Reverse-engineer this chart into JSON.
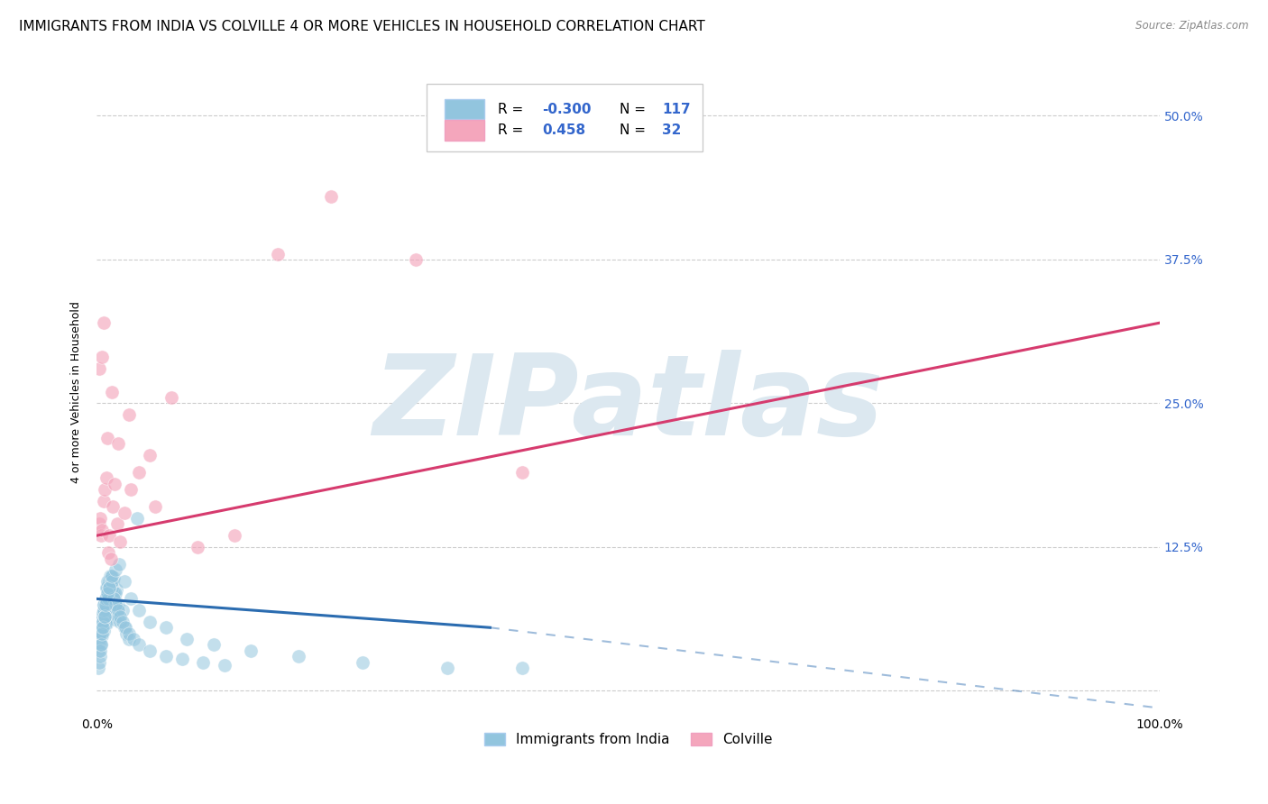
{
  "title": "IMMIGRANTS FROM INDIA VS COLVILLE 4 OR MORE VEHICLES IN HOUSEHOLD CORRELATION CHART",
  "source": "Source: ZipAtlas.com",
  "ylabel": "4 or more Vehicles in Household",
  "xlim": [
    0.0,
    100.0
  ],
  "ylim": [
    -2.0,
    54.0
  ],
  "yticks": [
    0.0,
    12.5,
    25.0,
    37.5,
    50.0
  ],
  "yticklabels": [
    "",
    "12.5%",
    "25.0%",
    "37.5%",
    "50.0%"
  ],
  "blue_color": "#92c5de",
  "pink_color": "#f4a6bc",
  "blue_R": -0.3,
  "blue_N": 117,
  "pink_R": 0.458,
  "pink_N": 32,
  "blue_line_color": "#2b6cb0",
  "pink_line_color": "#d63b6e",
  "grid_color": "#cccccc",
  "background_color": "#ffffff",
  "watermark": "ZIPatlas",
  "watermark_color": "#dce8f0",
  "title_fontsize": 11,
  "axis_fontsize": 9,
  "tick_fontsize": 10,
  "legend_color": "#3366cc",
  "blue_scatter_x": [
    0.22,
    0.35,
    0.41,
    0.52,
    0.58,
    0.63,
    0.68,
    0.72,
    0.75,
    0.8,
    0.85,
    0.9,
    0.95,
    1.0,
    1.05,
    1.1,
    1.15,
    1.2,
    1.25,
    1.3,
    1.35,
    1.4,
    1.48,
    1.55,
    1.62,
    1.7,
    1.78,
    1.85,
    1.92,
    2.0,
    0.2,
    0.3,
    0.38,
    0.45,
    0.5,
    0.55,
    0.6,
    0.65,
    0.7,
    0.78,
    0.82,
    0.88,
    0.93,
    0.98,
    1.03,
    1.08,
    1.18,
    1.28,
    1.38,
    1.5,
    1.6,
    1.72,
    1.88,
    2.05,
    2.2,
    2.4,
    2.6,
    2.8,
    3.0,
    0.18,
    0.25,
    0.32,
    0.42,
    0.48,
    0.54,
    0.62,
    0.7,
    0.78,
    0.85,
    0.92,
    1.0,
    1.1,
    1.2,
    1.32,
    1.45,
    1.6,
    1.8,
    2.0,
    2.2,
    2.45,
    2.7,
    3.0,
    3.5,
    4.0,
    5.0,
    6.5,
    8.0,
    10.0,
    12.0,
    0.15,
    0.22,
    0.28,
    0.35,
    0.42,
    0.5,
    0.6,
    0.72,
    0.85,
    1.0,
    1.2,
    1.45,
    1.75,
    2.1,
    2.6,
    3.2,
    4.0,
    5.0,
    6.5,
    8.5,
    11.0,
    14.5,
    19.0,
    25.0,
    33.0,
    40.0,
    3.8
  ],
  "blue_scatter_y": [
    5.5,
    6.0,
    5.8,
    6.2,
    6.5,
    5.9,
    6.8,
    7.0,
    6.4,
    6.9,
    7.2,
    5.8,
    6.3,
    7.5,
    7.8,
    6.5,
    7.0,
    8.0,
    7.3,
    6.8,
    7.6,
    8.2,
    6.5,
    7.1,
    8.5,
    6.2,
    7.8,
    8.8,
    7.2,
    7.5,
    4.2,
    5.0,
    5.5,
    4.8,
    5.6,
    6.0,
    6.8,
    7.5,
    5.2,
    6.5,
    5.8,
    7.0,
    8.0,
    7.8,
    9.0,
    8.5,
    9.5,
    10.0,
    9.0,
    9.5,
    9.8,
    8.5,
    7.5,
    6.5,
    6.0,
    7.0,
    5.5,
    5.0,
    4.5,
    3.5,
    4.5,
    5.0,
    4.0,
    5.5,
    6.0,
    7.0,
    7.5,
    6.5,
    8.0,
    9.0,
    9.5,
    8.0,
    9.0,
    10.0,
    9.5,
    8.0,
    7.5,
    7.0,
    6.5,
    6.0,
    5.5,
    5.0,
    4.5,
    4.0,
    3.5,
    3.0,
    2.8,
    2.5,
    2.2,
    2.0,
    2.5,
    3.0,
    3.5,
    4.0,
    5.0,
    5.5,
    6.5,
    7.5,
    8.5,
    9.0,
    10.0,
    10.5,
    11.0,
    9.5,
    8.0,
    7.0,
    6.0,
    5.5,
    4.5,
    4.0,
    3.5,
    3.0,
    2.5,
    2.0,
    2.0,
    15.0
  ],
  "pink_scatter_x": [
    0.2,
    0.3,
    0.4,
    0.52,
    0.65,
    0.78,
    0.92,
    1.05,
    1.18,
    1.35,
    1.5,
    1.7,
    1.9,
    2.2,
    2.6,
    3.2,
    4.0,
    5.5,
    7.0,
    9.5,
    13.0,
    17.0,
    22.0,
    30.0,
    40.0,
    0.25,
    0.45,
    0.7,
    1.0,
    1.4,
    2.0,
    3.0,
    5.0
  ],
  "pink_scatter_y": [
    14.5,
    15.0,
    13.5,
    14.0,
    16.5,
    17.5,
    18.5,
    12.0,
    13.5,
    11.5,
    16.0,
    18.0,
    14.5,
    13.0,
    15.5,
    17.5,
    19.0,
    16.0,
    25.5,
    12.5,
    13.5,
    38.0,
    43.0,
    37.5,
    19.0,
    28.0,
    29.0,
    32.0,
    22.0,
    26.0,
    21.5,
    24.0,
    20.5
  ],
  "blue_trend_x": [
    0.0,
    37.0,
    100.0
  ],
  "blue_trend_y": [
    8.0,
    5.5,
    -1.5
  ],
  "blue_solid_end": 37.0,
  "pink_trend_x": [
    0.0,
    100.0
  ],
  "pink_trend_y": [
    13.5,
    32.0
  ]
}
